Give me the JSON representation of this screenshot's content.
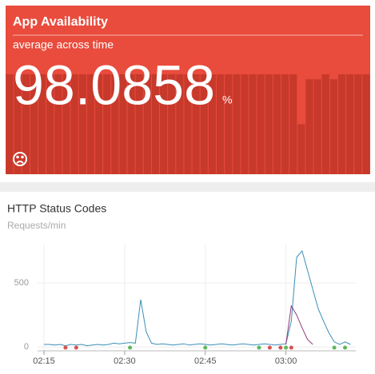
{
  "chart_data": [
    {
      "type": "bar",
      "title": "App Availability",
      "subtitle": "average across time",
      "big_value": 98.0858,
      "big_value_unit": "%",
      "color": "#c7392b",
      "values": [
        100,
        100,
        100,
        100,
        100,
        100,
        100,
        100,
        100,
        100,
        100,
        100,
        100,
        100,
        100,
        100,
        100,
        100,
        100,
        100,
        100,
        100,
        100,
        100,
        100,
        100,
        100,
        100,
        100,
        100,
        100,
        100,
        100,
        100,
        100,
        100,
        50,
        95,
        95,
        100,
        95,
        100,
        100,
        100,
        100
      ]
    },
    {
      "type": "line",
      "title": "HTTP Status Codes",
      "subtitle": "Requests/min",
      "x": [
        "02:15",
        "02:16",
        "02:17",
        "02:18",
        "02:19",
        "02:20",
        "02:21",
        "02:22",
        "02:23",
        "02:24",
        "02:25",
        "02:26",
        "02:27",
        "02:28",
        "02:29",
        "02:30",
        "02:31",
        "02:32",
        "02:33",
        "02:34",
        "02:35",
        "02:36",
        "02:37",
        "02:38",
        "02:39",
        "02:40",
        "02:41",
        "02:42",
        "02:43",
        "02:44",
        "02:45",
        "02:46",
        "02:47",
        "02:48",
        "02:49",
        "02:50",
        "02:51",
        "02:52",
        "02:53",
        "02:54",
        "02:55",
        "02:56",
        "02:57",
        "02:58",
        "02:59",
        "03:00",
        "03:01",
        "03:02",
        "03:03",
        "03:04",
        "03:05",
        "03:06",
        "03:07",
        "03:08",
        "03:09",
        "03:10",
        "03:11",
        "03:12"
      ],
      "series": [
        {
          "color": "#3a8fb7",
          "values": [
            20,
            20,
            15,
            20,
            10,
            20,
            15,
            20,
            10,
            15,
            20,
            15,
            20,
            30,
            25,
            30,
            35,
            30,
            370,
            120,
            30,
            20,
            25,
            20,
            15,
            20,
            25,
            15,
            20,
            25,
            20,
            15,
            20,
            25,
            20,
            15,
            20,
            25,
            20,
            15,
            20,
            25,
            20,
            15,
            20,
            25,
            200,
            700,
            750,
            600,
            450,
            300,
            200,
            110,
            40,
            20,
            40,
            20
          ]
        },
        {
          "color": "#8e3b7a",
          "values": [
            null,
            null,
            null,
            null,
            null,
            null,
            null,
            null,
            null,
            null,
            null,
            null,
            null,
            null,
            null,
            null,
            null,
            null,
            null,
            null,
            null,
            null,
            null,
            null,
            null,
            null,
            null,
            null,
            null,
            null,
            null,
            null,
            null,
            null,
            null,
            null,
            null,
            null,
            null,
            null,
            null,
            null,
            null,
            null,
            null,
            20,
            320,
            250,
            150,
            60,
            20,
            null,
            null,
            null,
            null,
            null,
            null,
            null
          ]
        }
      ],
      "events": [
        {
          "x": "02:19",
          "color": "#d9534f"
        },
        {
          "x": "02:21",
          "color": "#d9534f"
        },
        {
          "x": "02:31",
          "color": "#5cb85c"
        },
        {
          "x": "02:45",
          "color": "#5cb85c"
        },
        {
          "x": "02:55",
          "color": "#5cb85c"
        },
        {
          "x": "02:57",
          "color": "#d9534f"
        },
        {
          "x": "02:59",
          "color": "#d9534f"
        },
        {
          "x": "03:00",
          "color": "#5cb85c"
        },
        {
          "x": "03:01",
          "color": "#d9534f"
        },
        {
          "x": "03:09",
          "color": "#5cb85c"
        },
        {
          "x": "03:11",
          "color": "#5cb85c"
        }
      ],
      "xlim": [
        "02:15",
        "03:13"
      ],
      "xticks": [
        "02:15",
        "02:30",
        "02:45",
        "03:00"
      ],
      "ylim": [
        -30,
        800
      ],
      "yticks": [
        0,
        500
      ],
      "grid": true
    }
  ]
}
